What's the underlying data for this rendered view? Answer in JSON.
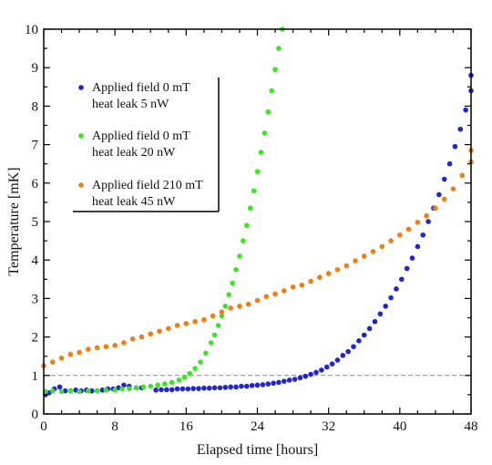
{
  "chart_data": {
    "type": "scatter",
    "xlabel": "Elapsed time [hours]",
    "ylabel": "Temperature [mK]",
    "xlim": [
      0,
      48
    ],
    "ylim": [
      0,
      10
    ],
    "xticks": [
      0,
      8,
      16,
      24,
      32,
      40,
      48
    ],
    "yticks": [
      0,
      1,
      2,
      3,
      4,
      5,
      6,
      7,
      8,
      9,
      10
    ],
    "reference_line": {
      "y": 1,
      "style": "dashed",
      "color": "#888888"
    },
    "legend_position": "top-left",
    "series": [
      {
        "name_lines": [
          "Applied field 0 mT",
          "heat leak 5 nW"
        ],
        "color": "#1f24d6",
        "points": [
          [
            0.2,
            0.5
          ],
          [
            0.6,
            0.55
          ],
          [
            1.2,
            0.65
          ],
          [
            1.8,
            0.7
          ],
          [
            2.4,
            0.6
          ],
          [
            3.0,
            0.6
          ],
          [
            3.6,
            0.62
          ],
          [
            4.2,
            0.6
          ],
          [
            4.8,
            0.62
          ],
          [
            5.4,
            0.6
          ],
          [
            6.0,
            0.6
          ],
          [
            6.6,
            0.62
          ],
          [
            7.2,
            0.65
          ],
          [
            7.8,
            0.65
          ],
          [
            8.4,
            0.68
          ],
          [
            9.0,
            0.75
          ],
          [
            9.6,
            0.72
          ],
          [
            10.4,
            0.68
          ],
          [
            11.0,
            0.68
          ],
          [
            12.6,
            0.62
          ],
          [
            13.2,
            0.63
          ],
          [
            13.8,
            0.63
          ],
          [
            14.4,
            0.63
          ],
          [
            15.0,
            0.65
          ],
          [
            15.6,
            0.65
          ],
          [
            16.2,
            0.65
          ],
          [
            16.8,
            0.66
          ],
          [
            17.4,
            0.66
          ],
          [
            18.0,
            0.67
          ],
          [
            18.6,
            0.67
          ],
          [
            19.2,
            0.68
          ],
          [
            19.8,
            0.68
          ],
          [
            20.4,
            0.69
          ],
          [
            21.0,
            0.7
          ],
          [
            21.6,
            0.7
          ],
          [
            22.2,
            0.72
          ],
          [
            22.8,
            0.72
          ],
          [
            23.4,
            0.74
          ],
          [
            24.0,
            0.75
          ],
          [
            24.6,
            0.76
          ],
          [
            25.2,
            0.78
          ],
          [
            25.8,
            0.8
          ],
          [
            26.4,
            0.82
          ],
          [
            27.0,
            0.85
          ],
          [
            27.6,
            0.88
          ],
          [
            28.2,
            0.9
          ],
          [
            28.8,
            0.94
          ],
          [
            29.4,
            0.98
          ],
          [
            30.0,
            1.03
          ],
          [
            30.6,
            1.08
          ],
          [
            31.2,
            1.14
          ],
          [
            31.8,
            1.22
          ],
          [
            32.4,
            1.3
          ],
          [
            33.0,
            1.4
          ],
          [
            33.6,
            1.52
          ],
          [
            34.2,
            1.62
          ],
          [
            34.8,
            1.75
          ],
          [
            35.4,
            1.9
          ],
          [
            36.0,
            2.05
          ],
          [
            36.6,
            2.22
          ],
          [
            37.2,
            2.4
          ],
          [
            37.8,
            2.6
          ],
          [
            38.4,
            2.8
          ],
          [
            39.0,
            3.02
          ],
          [
            39.6,
            3.25
          ],
          [
            40.2,
            3.5
          ],
          [
            40.8,
            3.78
          ],
          [
            41.4,
            4.05
          ],
          [
            42.0,
            4.35
          ],
          [
            42.6,
            4.65
          ],
          [
            43.2,
            5.0
          ],
          [
            43.8,
            5.35
          ],
          [
            44.4,
            5.7
          ],
          [
            45.0,
            6.1
          ],
          [
            45.6,
            6.5
          ],
          [
            46.2,
            6.95
          ],
          [
            46.8,
            7.4
          ],
          [
            47.4,
            7.9
          ],
          [
            48.0,
            8.4
          ],
          [
            48.0,
            8.8
          ]
        ]
      },
      {
        "name_lines": [
          "Applied field 0 mT",
          "heat leak 20 nW"
        ],
        "color": "#39e61f",
        "points": [
          [
            0.2,
            0.58
          ],
          [
            1.0,
            0.6
          ],
          [
            2.0,
            0.58
          ],
          [
            3.0,
            0.6
          ],
          [
            4.0,
            0.58
          ],
          [
            5.0,
            0.6
          ],
          [
            6.0,
            0.6
          ],
          [
            7.0,
            0.62
          ],
          [
            8.0,
            0.62
          ],
          [
            8.8,
            0.65
          ],
          [
            9.6,
            0.66
          ],
          [
            10.4,
            0.68
          ],
          [
            11.2,
            0.7
          ],
          [
            12.0,
            0.72
          ],
          [
            12.8,
            0.75
          ],
          [
            13.6,
            0.78
          ],
          [
            14.4,
            0.82
          ],
          [
            15.2,
            0.88
          ],
          [
            15.8,
            0.95
          ],
          [
            16.4,
            1.05
          ],
          [
            17.0,
            1.18
          ],
          [
            17.6,
            1.35
          ],
          [
            18.2,
            1.58
          ],
          [
            18.8,
            1.85
          ],
          [
            19.2,
            2.05
          ],
          [
            19.6,
            2.3
          ],
          [
            20.0,
            2.55
          ],
          [
            20.4,
            2.8
          ],
          [
            20.8,
            3.1
          ],
          [
            21.2,
            3.4
          ],
          [
            21.6,
            3.75
          ],
          [
            22.0,
            4.1
          ],
          [
            22.4,
            4.5
          ],
          [
            22.8,
            4.9
          ],
          [
            23.2,
            5.35
          ],
          [
            23.6,
            5.8
          ],
          [
            24.0,
            6.3
          ],
          [
            24.4,
            6.8
          ],
          [
            24.8,
            7.3
          ],
          [
            25.2,
            7.85
          ],
          [
            25.6,
            8.4
          ],
          [
            26.0,
            8.95
          ],
          [
            26.4,
            9.5
          ],
          [
            26.8,
            10.0
          ]
        ]
      },
      {
        "name_lines": [
          "Applied field 210 mT",
          "heat leak 45 nW"
        ],
        "color": "#f07f12",
        "points": [
          [
            0.0,
            1.25
          ],
          [
            1.0,
            1.35
          ],
          [
            2.0,
            1.45
          ],
          [
            3.0,
            1.55
          ],
          [
            4.0,
            1.6
          ],
          [
            5.0,
            1.68
          ],
          [
            6.0,
            1.72
          ],
          [
            7.0,
            1.75
          ],
          [
            8.0,
            1.78
          ],
          [
            9.0,
            1.85
          ],
          [
            10.0,
            1.95
          ],
          [
            11.0,
            2.0
          ],
          [
            12.0,
            2.08
          ],
          [
            13.0,
            2.15
          ],
          [
            14.0,
            2.22
          ],
          [
            15.0,
            2.3
          ],
          [
            16.0,
            2.35
          ],
          [
            17.0,
            2.4
          ],
          [
            18.0,
            2.45
          ],
          [
            19.0,
            2.55
          ],
          [
            20.0,
            2.65
          ],
          [
            21.0,
            2.75
          ],
          [
            22.0,
            2.8
          ],
          [
            23.0,
            2.85
          ],
          [
            24.0,
            2.95
          ],
          [
            25.0,
            3.05
          ],
          [
            26.0,
            3.12
          ],
          [
            27.0,
            3.2
          ],
          [
            28.0,
            3.3
          ],
          [
            29.0,
            3.35
          ],
          [
            30.0,
            3.45
          ],
          [
            31.0,
            3.55
          ],
          [
            32.0,
            3.65
          ],
          [
            33.0,
            3.75
          ],
          [
            34.0,
            3.85
          ],
          [
            35.0,
            3.98
          ],
          [
            36.0,
            4.1
          ],
          [
            37.0,
            4.22
          ],
          [
            38.0,
            4.35
          ],
          [
            39.0,
            4.5
          ],
          [
            40.0,
            4.65
          ],
          [
            41.0,
            4.8
          ],
          [
            42.0,
            4.98
          ],
          [
            43.0,
            5.15
          ],
          [
            44.0,
            5.35
          ],
          [
            45.0,
            5.58
          ],
          [
            46.0,
            5.85
          ],
          [
            47.0,
            6.2
          ],
          [
            48.0,
            6.55
          ],
          [
            48.0,
            6.85
          ]
        ]
      }
    ]
  }
}
